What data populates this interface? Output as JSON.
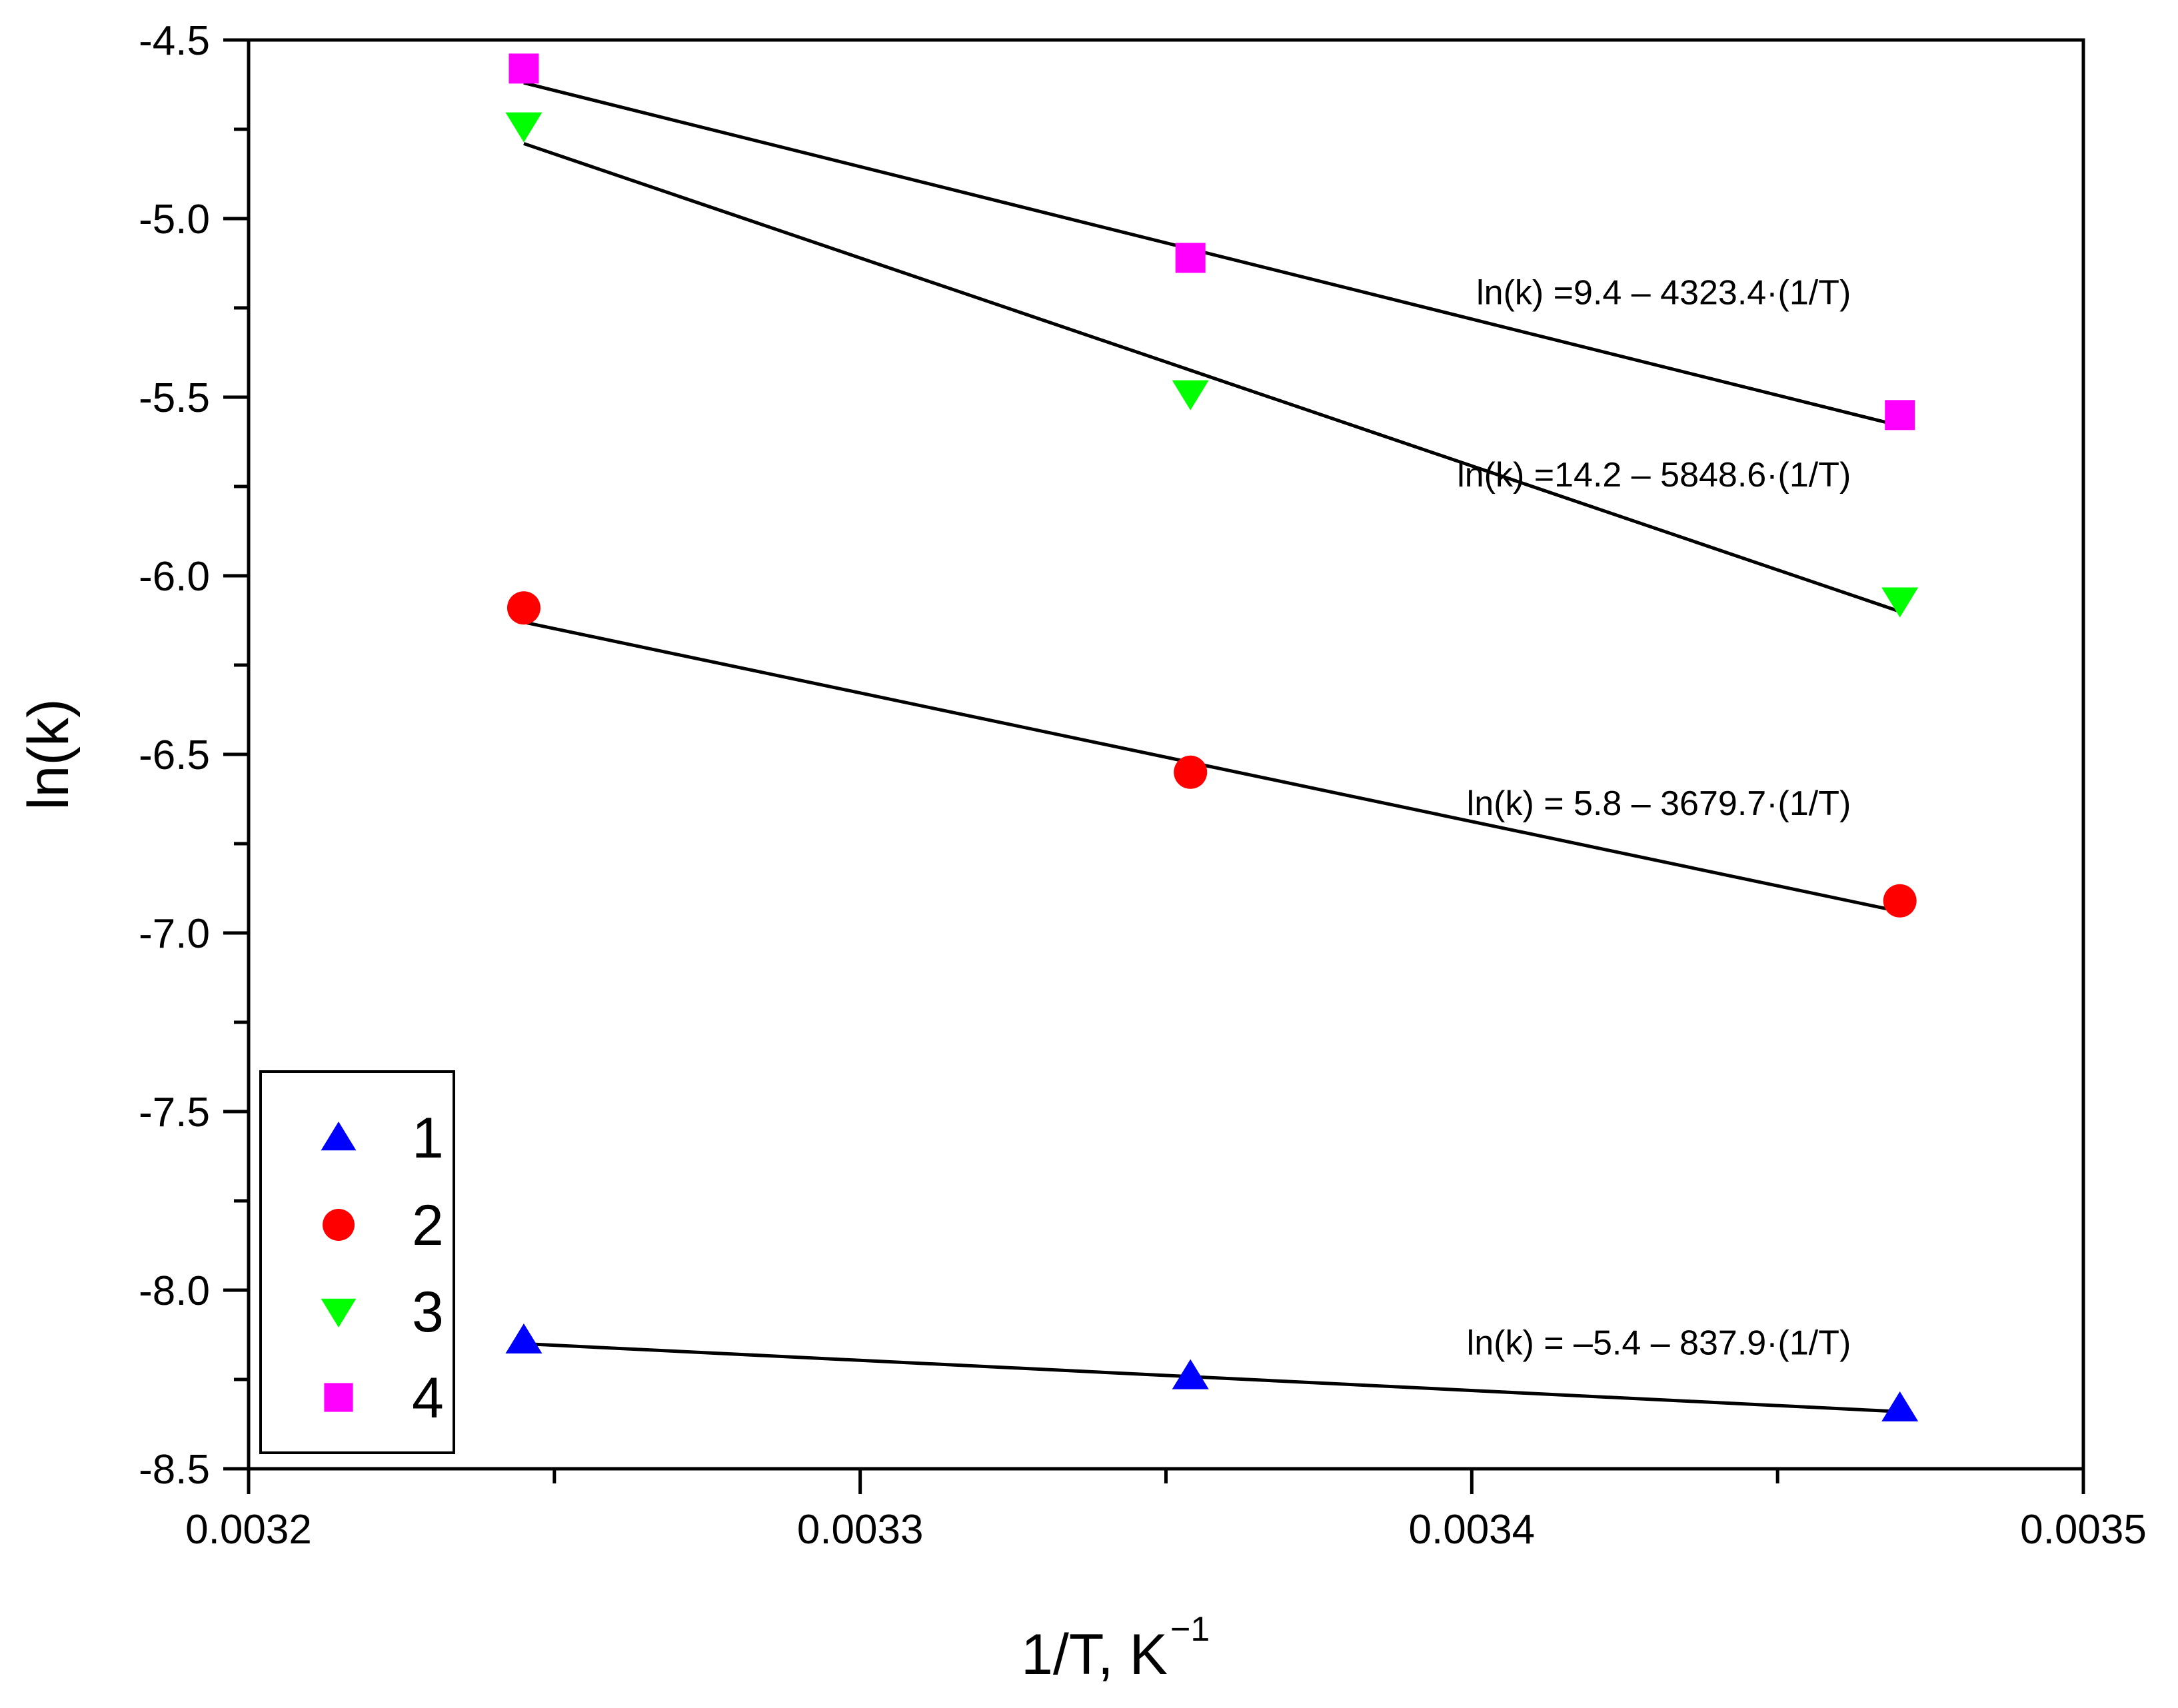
{
  "chart_data": {
    "type": "scatter",
    "title": "",
    "xlabel": "1/T, K",
    "xlabel_superscript": "−1",
    "ylabel": "ln(k)",
    "xlim": [
      0.0032,
      0.0035
    ],
    "ylim": [
      -8.5,
      -4.5
    ],
    "xticks": [
      0.0032,
      0.0033,
      0.0034,
      0.0035
    ],
    "xtick_labels": [
      "0.0032",
      "0.0033",
      "0.0034",
      "0.0035"
    ],
    "yticks": [
      -4.5,
      -5.0,
      -5.5,
      -6.0,
      -6.5,
      -7.0,
      -7.5,
      -8.0,
      -8.5
    ],
    "ytick_labels": [
      "-4.5",
      "-5.0",
      "-5.5",
      "-6.0",
      "-6.5",
      "-7.0",
      "-7.5",
      "-8.0",
      "-8.5"
    ],
    "grid": false,
    "legend_position": "bottom-left",
    "series": [
      {
        "name": "1",
        "marker": "triangle-up",
        "color": "#0000FF",
        "x": [
          0.003245,
          0.003354,
          0.00347
        ],
        "y": [
          -8.14,
          -8.24,
          -8.33
        ],
        "fit": {
          "intercept": -5.4,
          "slope": -837.9,
          "equation": "ln(k) = –5.4 – 837.9·(1/T)"
        }
      },
      {
        "name": "2",
        "marker": "circle",
        "color": "#FF0000",
        "x": [
          0.003245,
          0.003354,
          0.00347
        ],
        "y": [
          -6.09,
          -6.55,
          -6.91
        ],
        "fit": {
          "intercept": 5.8,
          "slope": -3679.7,
          "equation": "ln(k) = 5.8 – 3679.7·(1/T)"
        }
      },
      {
        "name": "3",
        "marker": "triangle-down",
        "color": "#00FF00",
        "x": [
          0.003245,
          0.003354,
          0.00347
        ],
        "y": [
          -4.74,
          -5.49,
          -6.07
        ],
        "fit": {
          "intercept": 14.2,
          "slope": -5848.6,
          "equation": "ln(k) =14.2 – 5848.6·(1/T)"
        }
      },
      {
        "name": "4",
        "marker": "square",
        "color": "#FF00FF",
        "x": [
          0.003245,
          0.003354,
          0.00347
        ],
        "y": [
          -4.58,
          -5.11,
          -5.55
        ],
        "fit": {
          "intercept": 9.4,
          "slope": -4323.4,
          "equation": "ln(k) =9.4 – 4323.4·(1/T)"
        }
      }
    ],
    "fit_lines": [
      {
        "series": "4",
        "x": [
          0.003245,
          0.00347
        ],
        "y": [
          -4.62,
          -5.58
        ]
      },
      {
        "series": "3",
        "x": [
          0.003245,
          0.00347
        ],
        "y": [
          -4.79,
          -6.1
        ]
      },
      {
        "series": "2",
        "x": [
          0.003245,
          0.00347
        ],
        "y": [
          -6.13,
          -6.94
        ]
      },
      {
        "series": "1",
        "x": [
          0.003245,
          0.00347
        ],
        "y": [
          -8.15,
          -8.34
        ]
      }
    ],
    "annotations": [
      {
        "text": "ln(k) =9.4 – 4323.4·(1/T)",
        "x": 0.003462,
        "y": -5.24
      },
      {
        "text": "ln(k) =14.2 – 5848.6·(1/T)",
        "x": 0.003462,
        "y": -5.75
      },
      {
        "text": "ln(k) = 5.8 – 3679.7·(1/T)",
        "x": 0.003462,
        "y": -6.67
      },
      {
        "text": "ln(k) = –5.4 – 837.9·(1/T)",
        "x": 0.003462,
        "y": -8.18
      }
    ]
  }
}
